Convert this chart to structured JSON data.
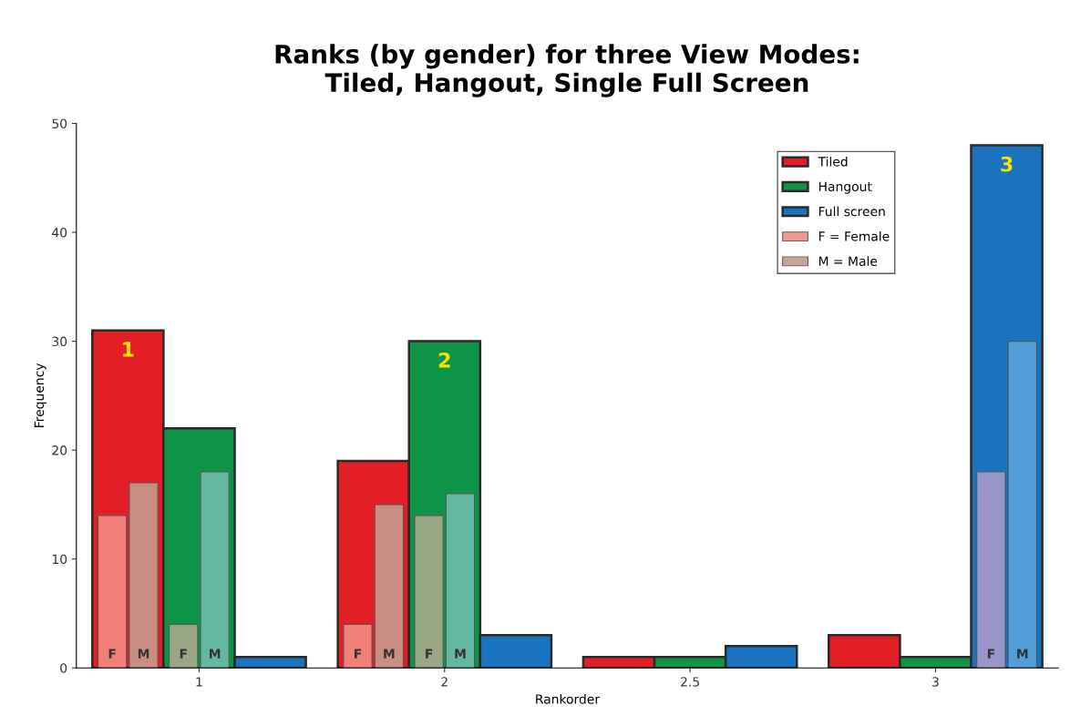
{
  "chart_data": {
    "type": "bar",
    "title": "Ranks (by gender) for three View Modes:\nTiled, Hangout, Single Full Screen",
    "xlabel": "Rankorder",
    "ylabel": "Frequency",
    "categories": [
      "1",
      "2",
      "2.5",
      "3"
    ],
    "series": [
      {
        "name": "Tiled",
        "color": "#e21e26",
        "values": [
          31,
          19,
          1,
          3
        ]
      },
      {
        "name": "Hangout",
        "color": "#0f9447",
        "values": [
          22,
          30,
          1,
          1
        ]
      },
      {
        "name": "Full screen",
        "color": "#1a73be",
        "values": [
          1,
          3,
          2,
          48
        ]
      },
      {
        "name": "F = Female",
        "color": "#f28b82",
        "values": [
          14,
          4,
          null,
          null
        ],
        "value_labels": [
          "F",
          "F",
          null,
          null
        ]
      },
      {
        "name": "M = Male",
        "color": "#c89a8c",
        "values": [
          17,
          15,
          null,
          null
        ],
        "value_labels": [
          "M",
          "M",
          null,
          null
        ]
      },
      {
        "color": "#a8a88c",
        "values": [
          4,
          14,
          null,
          null
        ],
        "value_labels": [
          "F",
          "F",
          null,
          null
        ]
      },
      {
        "color": "#6fbcaa",
        "values": [
          18,
          16,
          null,
          null
        ],
        "value_labels": [
          "M",
          "M",
          null,
          null
        ]
      },
      {
        "color": "#a89ccb",
        "values": [
          null,
          null,
          null,
          18
        ],
        "value_labels": [
          null,
          null,
          null,
          "F"
        ]
      },
      {
        "color": "#5aa5dc",
        "values": [
          null,
          null,
          null,
          30
        ],
        "value_labels": [
          null,
          null,
          null,
          "M"
        ]
      }
    ],
    "annotations": [
      "1",
      "2",
      "3"
    ],
    "ylim": [
      0,
      50
    ],
    "yticks": [
      0,
      10,
      20,
      30,
      40,
      50
    ],
    "legend": "top right"
  }
}
